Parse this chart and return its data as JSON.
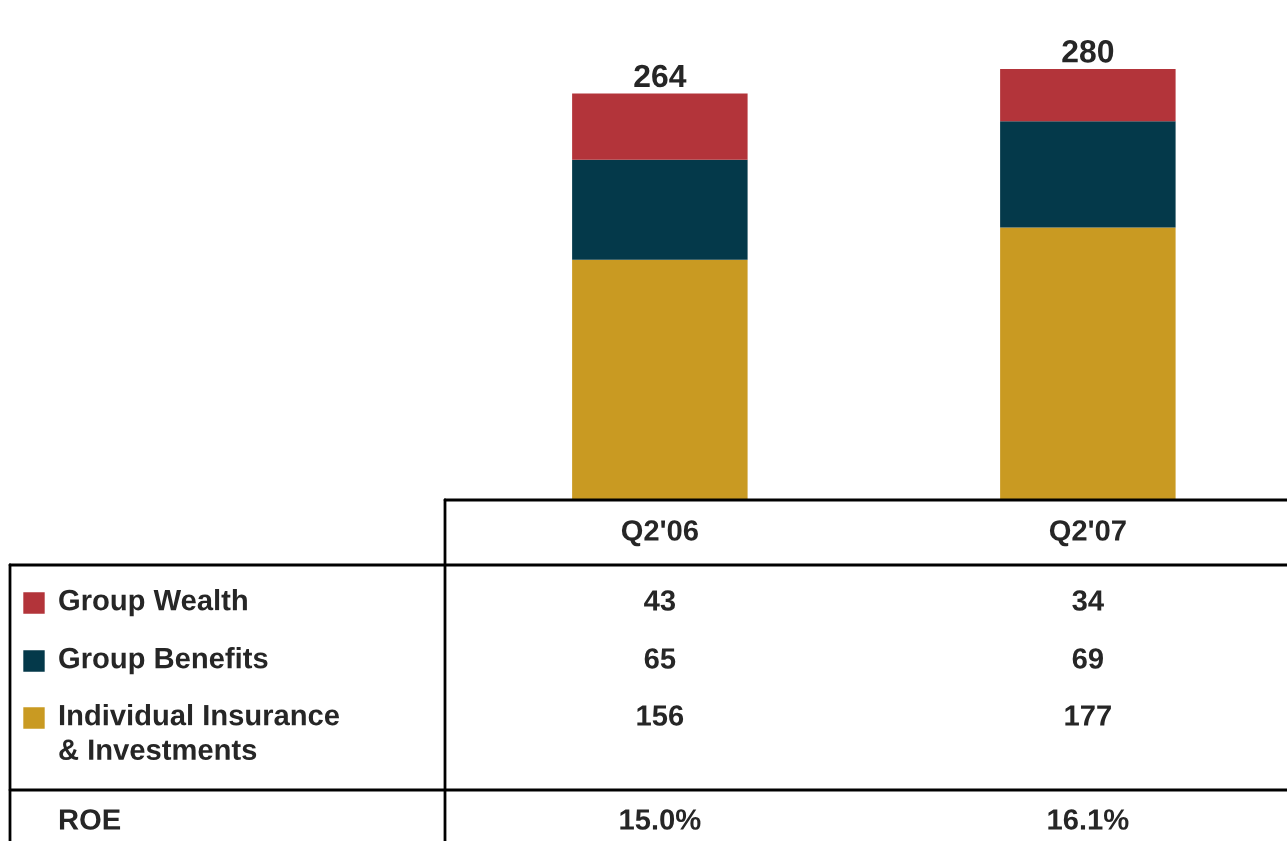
{
  "chart_data": {
    "type": "bar",
    "stacked": true,
    "categories": [
      "Q2'06",
      "Q2'07"
    ],
    "series": [
      {
        "name": "Individual Insurance\n& Investments",
        "color": "#c99a22",
        "values": [
          156,
          177
        ]
      },
      {
        "name": "Group Benefits",
        "color": "#04394a",
        "values": [
          65,
          69
        ]
      },
      {
        "name": "Group Wealth",
        "color": "#b3343a",
        "values": [
          43,
          34
        ]
      }
    ],
    "totals": [
      "264",
      "280"
    ],
    "data_labels": true,
    "legend": "bottom left",
    "annotations": [
      "ROE",
      "15.0%",
      "16.1%"
    ]
  }
}
